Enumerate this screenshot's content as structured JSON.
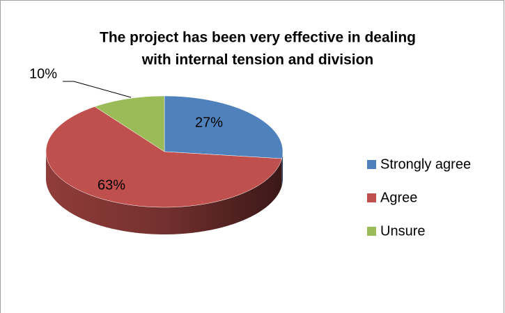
{
  "chart_data": {
    "type": "pie3d",
    "title": [
      "The project has been very effective in dealing",
      "with internal tension and division"
    ],
    "categories": [
      "Strongly agree",
      "Agree",
      "Unsure"
    ],
    "values": [
      27,
      63,
      10
    ],
    "value_labels": [
      "27%",
      "63%",
      "10%"
    ],
    "colors": [
      "#4f81bd",
      "#c0504d",
      "#9bbb59"
    ],
    "legend": "right"
  }
}
